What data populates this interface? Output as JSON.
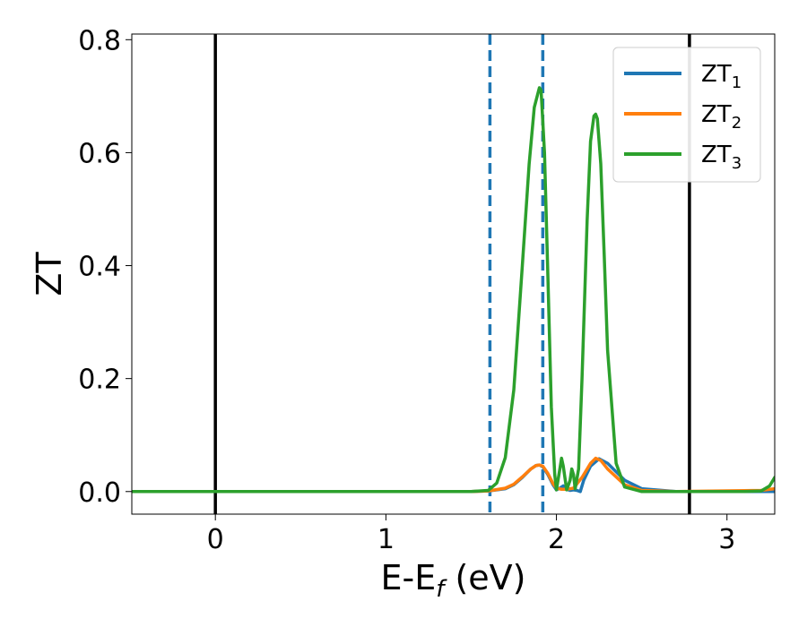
{
  "chart_data": {
    "type": "line",
    "xlabel": "E-E",
    "xlabel_sub": "f",
    "xlabel_unit": " (eV)",
    "ylabel": "ZT",
    "xlim": [
      -0.49,
      3.28
    ],
    "ylim": [
      -0.04,
      0.81
    ],
    "x_ticks": [
      0,
      1,
      2,
      3
    ],
    "x_tick_labels": [
      "0",
      "1",
      "2",
      "3"
    ],
    "y_ticks": [
      0.0,
      0.2,
      0.4,
      0.6,
      0.8
    ],
    "y_tick_labels": [
      "0.0",
      "0.2",
      "0.4",
      "0.6",
      "0.8"
    ],
    "grid": false,
    "legend_position": "top-right",
    "vertical_lines": [
      {
        "x": 0.0,
        "style": "solid",
        "color": "#000000"
      },
      {
        "x": 2.78,
        "style": "solid",
        "color": "#000000"
      },
      {
        "x": 1.61,
        "style": "dashed",
        "color": "#1f77b4"
      },
      {
        "x": 1.92,
        "style": "dashed",
        "color": "#1f77b4"
      }
    ],
    "series": [
      {
        "name": "ZT",
        "name_sub": "1",
        "color": "#1f77b4",
        "x": [
          -0.49,
          1.5,
          1.6,
          1.7,
          1.75,
          1.8,
          1.85,
          1.88,
          1.9,
          1.92,
          1.95,
          1.98,
          2.0,
          2.02,
          2.04,
          2.06,
          2.08,
          2.1,
          2.12,
          2.14,
          2.16,
          2.2,
          2.25,
          2.3,
          2.4,
          2.5,
          2.7,
          3.28
        ],
        "y": [
          0.0,
          0.0,
          0.001,
          0.005,
          0.012,
          0.025,
          0.04,
          0.046,
          0.047,
          0.044,
          0.03,
          0.012,
          0.003,
          0.006,
          0.01,
          0.004,
          0.002,
          0.003,
          0.002,
          0.0,
          0.02,
          0.045,
          0.058,
          0.05,
          0.02,
          0.005,
          0.0,
          0.0
        ]
      },
      {
        "name": "ZT",
        "name_sub": "2",
        "color": "#ff7f0e",
        "x": [
          -0.49,
          1.5,
          1.6,
          1.7,
          1.75,
          1.8,
          1.85,
          1.88,
          1.9,
          1.92,
          1.95,
          1.98,
          2.0,
          2.03,
          2.06,
          2.1,
          2.15,
          2.2,
          2.23,
          2.26,
          2.3,
          2.4,
          2.5,
          2.7,
          3.2,
          3.28
        ],
        "y": [
          0.0,
          0.0,
          0.001,
          0.006,
          0.013,
          0.026,
          0.04,
          0.046,
          0.047,
          0.045,
          0.032,
          0.014,
          0.006,
          0.004,
          0.004,
          0.006,
          0.025,
          0.05,
          0.059,
          0.055,
          0.04,
          0.012,
          0.002,
          0.0,
          0.002,
          0.005
        ]
      },
      {
        "name": "ZT",
        "name_sub": "3",
        "color": "#2ca02c",
        "x": [
          -0.49,
          1.5,
          1.6,
          1.65,
          1.7,
          1.75,
          1.8,
          1.84,
          1.87,
          1.9,
          1.91,
          1.93,
          1.95,
          1.97,
          1.99,
          2.0,
          2.02,
          2.03,
          2.04,
          2.06,
          2.08,
          2.09,
          2.1,
          2.11,
          2.13,
          2.15,
          2.18,
          2.2,
          2.22,
          2.23,
          2.24,
          2.26,
          2.28,
          2.3,
          2.35,
          2.4,
          2.5,
          2.6,
          3.1,
          3.2,
          3.25,
          3.28
        ],
        "y": [
          0.0,
          0.0,
          0.002,
          0.015,
          0.06,
          0.18,
          0.4,
          0.58,
          0.68,
          0.715,
          0.71,
          0.6,
          0.38,
          0.15,
          0.03,
          0.003,
          0.04,
          0.059,
          0.045,
          0.003,
          0.02,
          0.04,
          0.03,
          0.005,
          0.04,
          0.2,
          0.48,
          0.62,
          0.665,
          0.668,
          0.66,
          0.58,
          0.42,
          0.25,
          0.05,
          0.008,
          0.0,
          0.0,
          0.0,
          0.001,
          0.01,
          0.025
        ]
      }
    ]
  }
}
